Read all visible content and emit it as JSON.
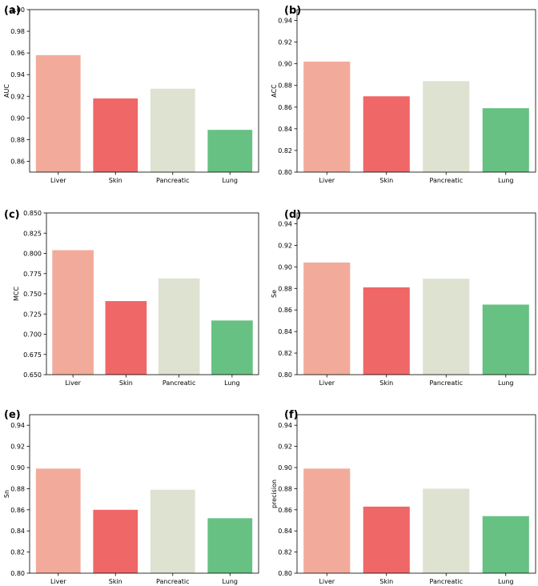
{
  "chart_data": [
    {
      "type": "bar",
      "panel_label": "(a)",
      "title": "",
      "xlabel": "",
      "ylabel": "AUC",
      "categories": [
        "Liver",
        "Skin",
        "Pancreatic",
        "Lung"
      ],
      "values": [
        0.958,
        0.918,
        0.927,
        0.889
      ],
      "colors": [
        "#f2ab9b",
        "#ef6767",
        "#dee2d1",
        "#66c183"
      ],
      "ylim": [
        0.85,
        1.0
      ],
      "yticks": [
        "0.86",
        "0.88",
        "0.90",
        "0.92",
        "0.94",
        "0.96",
        "0.98",
        "1.00"
      ],
      "grid": false
    },
    {
      "type": "bar",
      "panel_label": "(b)",
      "title": "",
      "xlabel": "",
      "ylabel": "ACC",
      "categories": [
        "Liver",
        "Skin",
        "Pancreatic",
        "Lung"
      ],
      "values": [
        0.902,
        0.87,
        0.884,
        0.859
      ],
      "colors": [
        "#f2ab9b",
        "#ef6767",
        "#dee2d1",
        "#66c183"
      ],
      "ylim": [
        0.8,
        0.95
      ],
      "yticks": [
        "0.80",
        "0.82",
        "0.84",
        "0.86",
        "0.88",
        "0.90",
        "0.92",
        "0.94"
      ],
      "grid": false
    },
    {
      "type": "bar",
      "panel_label": "(c)",
      "title": "",
      "xlabel": "",
      "ylabel": "MCC",
      "categories": [
        "Liver",
        "Skin",
        "Pancreatic",
        "Lung"
      ],
      "values": [
        0.804,
        0.741,
        0.769,
        0.717
      ],
      "colors": [
        "#f2ab9b",
        "#ef6767",
        "#dee2d1",
        "#66c183"
      ],
      "ylim": [
        0.65,
        0.85
      ],
      "yticks": [
        "0.650",
        "0.675",
        "0.700",
        "0.725",
        "0.750",
        "0.775",
        "0.800",
        "0.825",
        "0.850"
      ],
      "grid": false
    },
    {
      "type": "bar",
      "panel_label": "(d)",
      "title": "",
      "xlabel": "",
      "ylabel": "Se",
      "categories": [
        "Liver",
        "Skin",
        "Pancreatic",
        "Lung"
      ],
      "values": [
        0.904,
        0.881,
        0.889,
        0.865
      ],
      "colors": [
        "#f2ab9b",
        "#ef6767",
        "#dee2d1",
        "#66c183"
      ],
      "ylim": [
        0.8,
        0.95
      ],
      "yticks": [
        "0.80",
        "0.82",
        "0.84",
        "0.86",
        "0.88",
        "0.90",
        "0.92",
        "0.94"
      ],
      "grid": false
    },
    {
      "type": "bar",
      "panel_label": "(e)",
      "title": "",
      "xlabel": "",
      "ylabel": "Sn",
      "categories": [
        "Liver",
        "Skin",
        "Pancreatic",
        "Lung"
      ],
      "values": [
        0.899,
        0.86,
        0.879,
        0.852
      ],
      "colors": [
        "#f2ab9b",
        "#ef6767",
        "#dee2d1",
        "#66c183"
      ],
      "ylim": [
        0.8,
        0.95
      ],
      "yticks": [
        "0.80",
        "0.82",
        "0.84",
        "0.86",
        "0.88",
        "0.90",
        "0.92",
        "0.94"
      ],
      "grid": false
    },
    {
      "type": "bar",
      "panel_label": "(f)",
      "title": "",
      "xlabel": "",
      "ylabel": "precision",
      "categories": [
        "Liver",
        "Skin",
        "Pancreatic",
        "Lung"
      ],
      "values": [
        0.899,
        0.863,
        0.88,
        0.854
      ],
      "colors": [
        "#f2ab9b",
        "#ef6767",
        "#dee2d1",
        "#66c183"
      ],
      "ylim": [
        0.8,
        0.95
      ],
      "yticks": [
        "0.80",
        "0.82",
        "0.84",
        "0.86",
        "0.88",
        "0.90",
        "0.92",
        "0.94"
      ],
      "grid": false
    }
  ]
}
